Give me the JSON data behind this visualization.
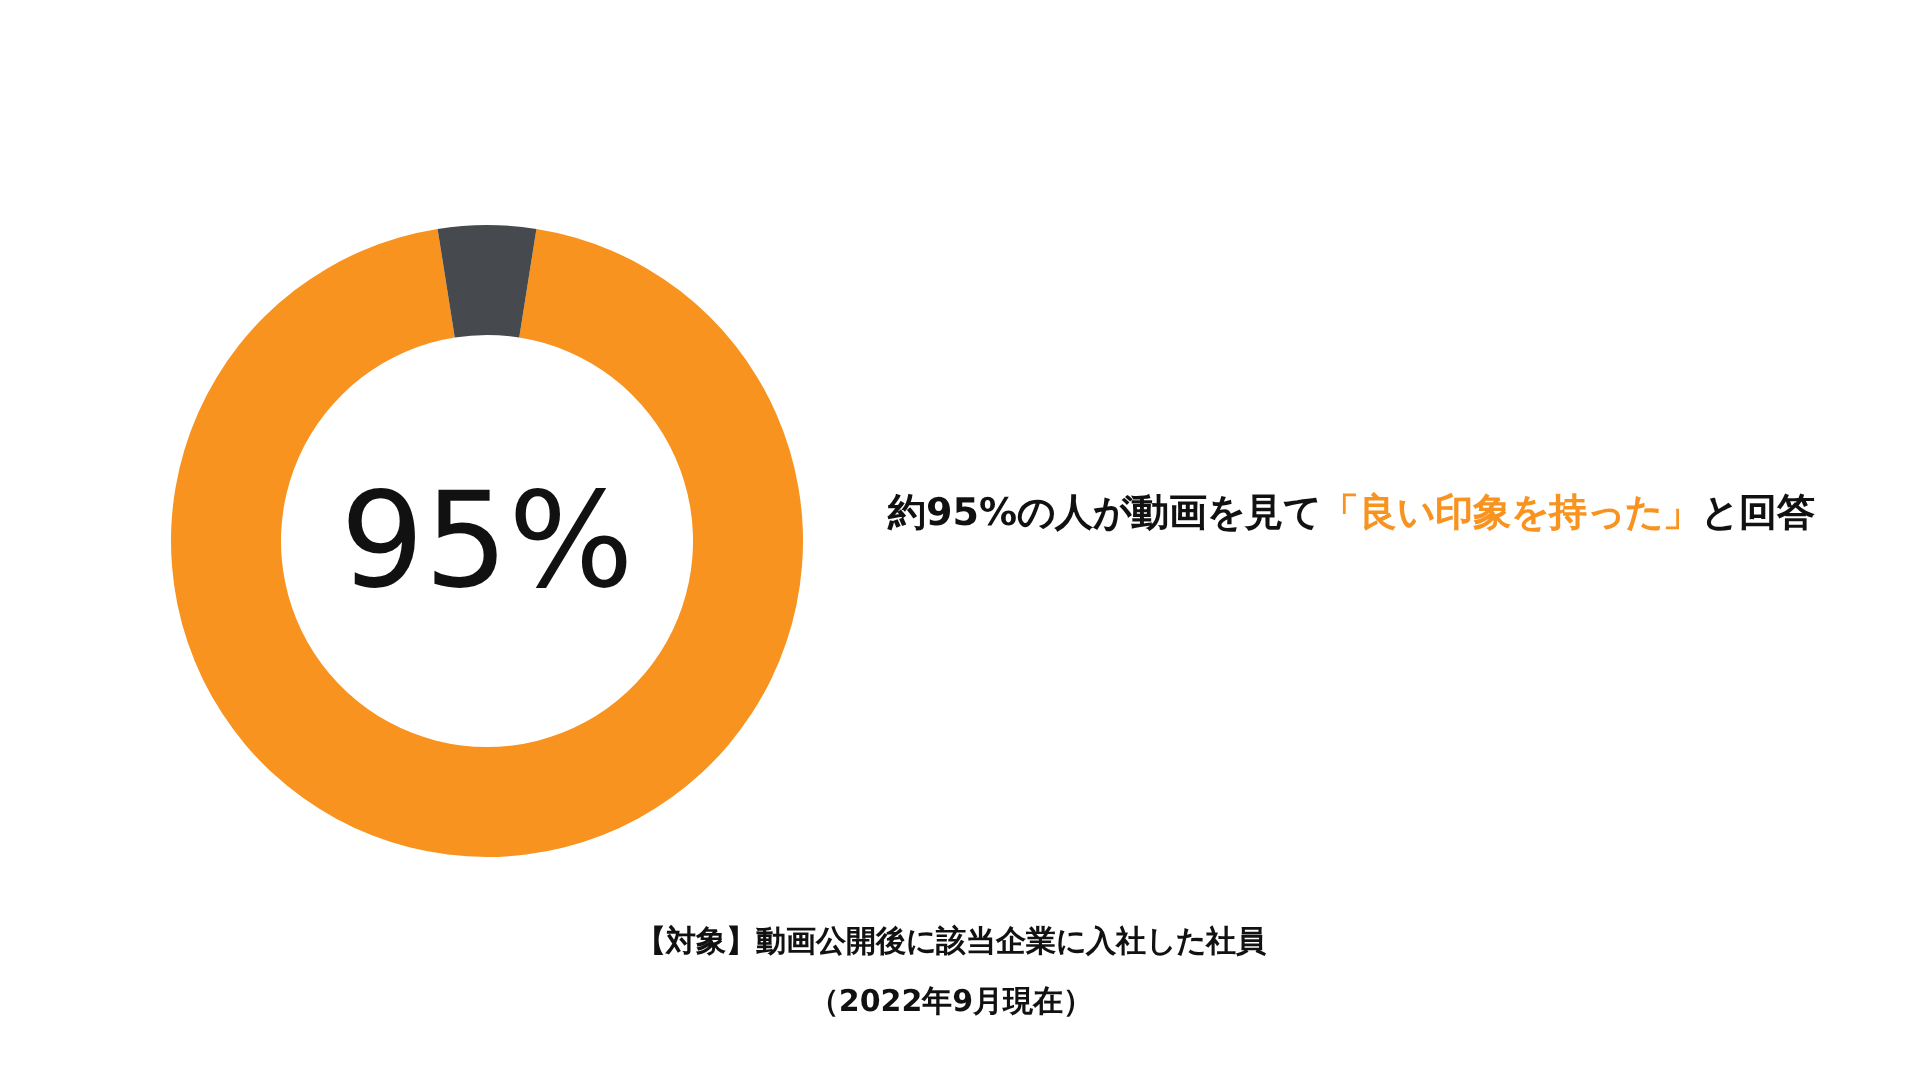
{
  "chart_data": {
    "type": "donut",
    "categories": [
      null,
      null
    ],
    "values": [
      95,
      5
    ],
    "colors": [
      "#f7931e",
      "#464a4f"
    ],
    "value_labels": [
      "95%",
      null
    ],
    "annotations": [
      "約95%の人が動画を見て",
      "「良い印象を持った」",
      "と回答",
      "【対象】動画公開後に該当企業に入社した社員",
      "（2022年9月現在）"
    ]
  }
}
